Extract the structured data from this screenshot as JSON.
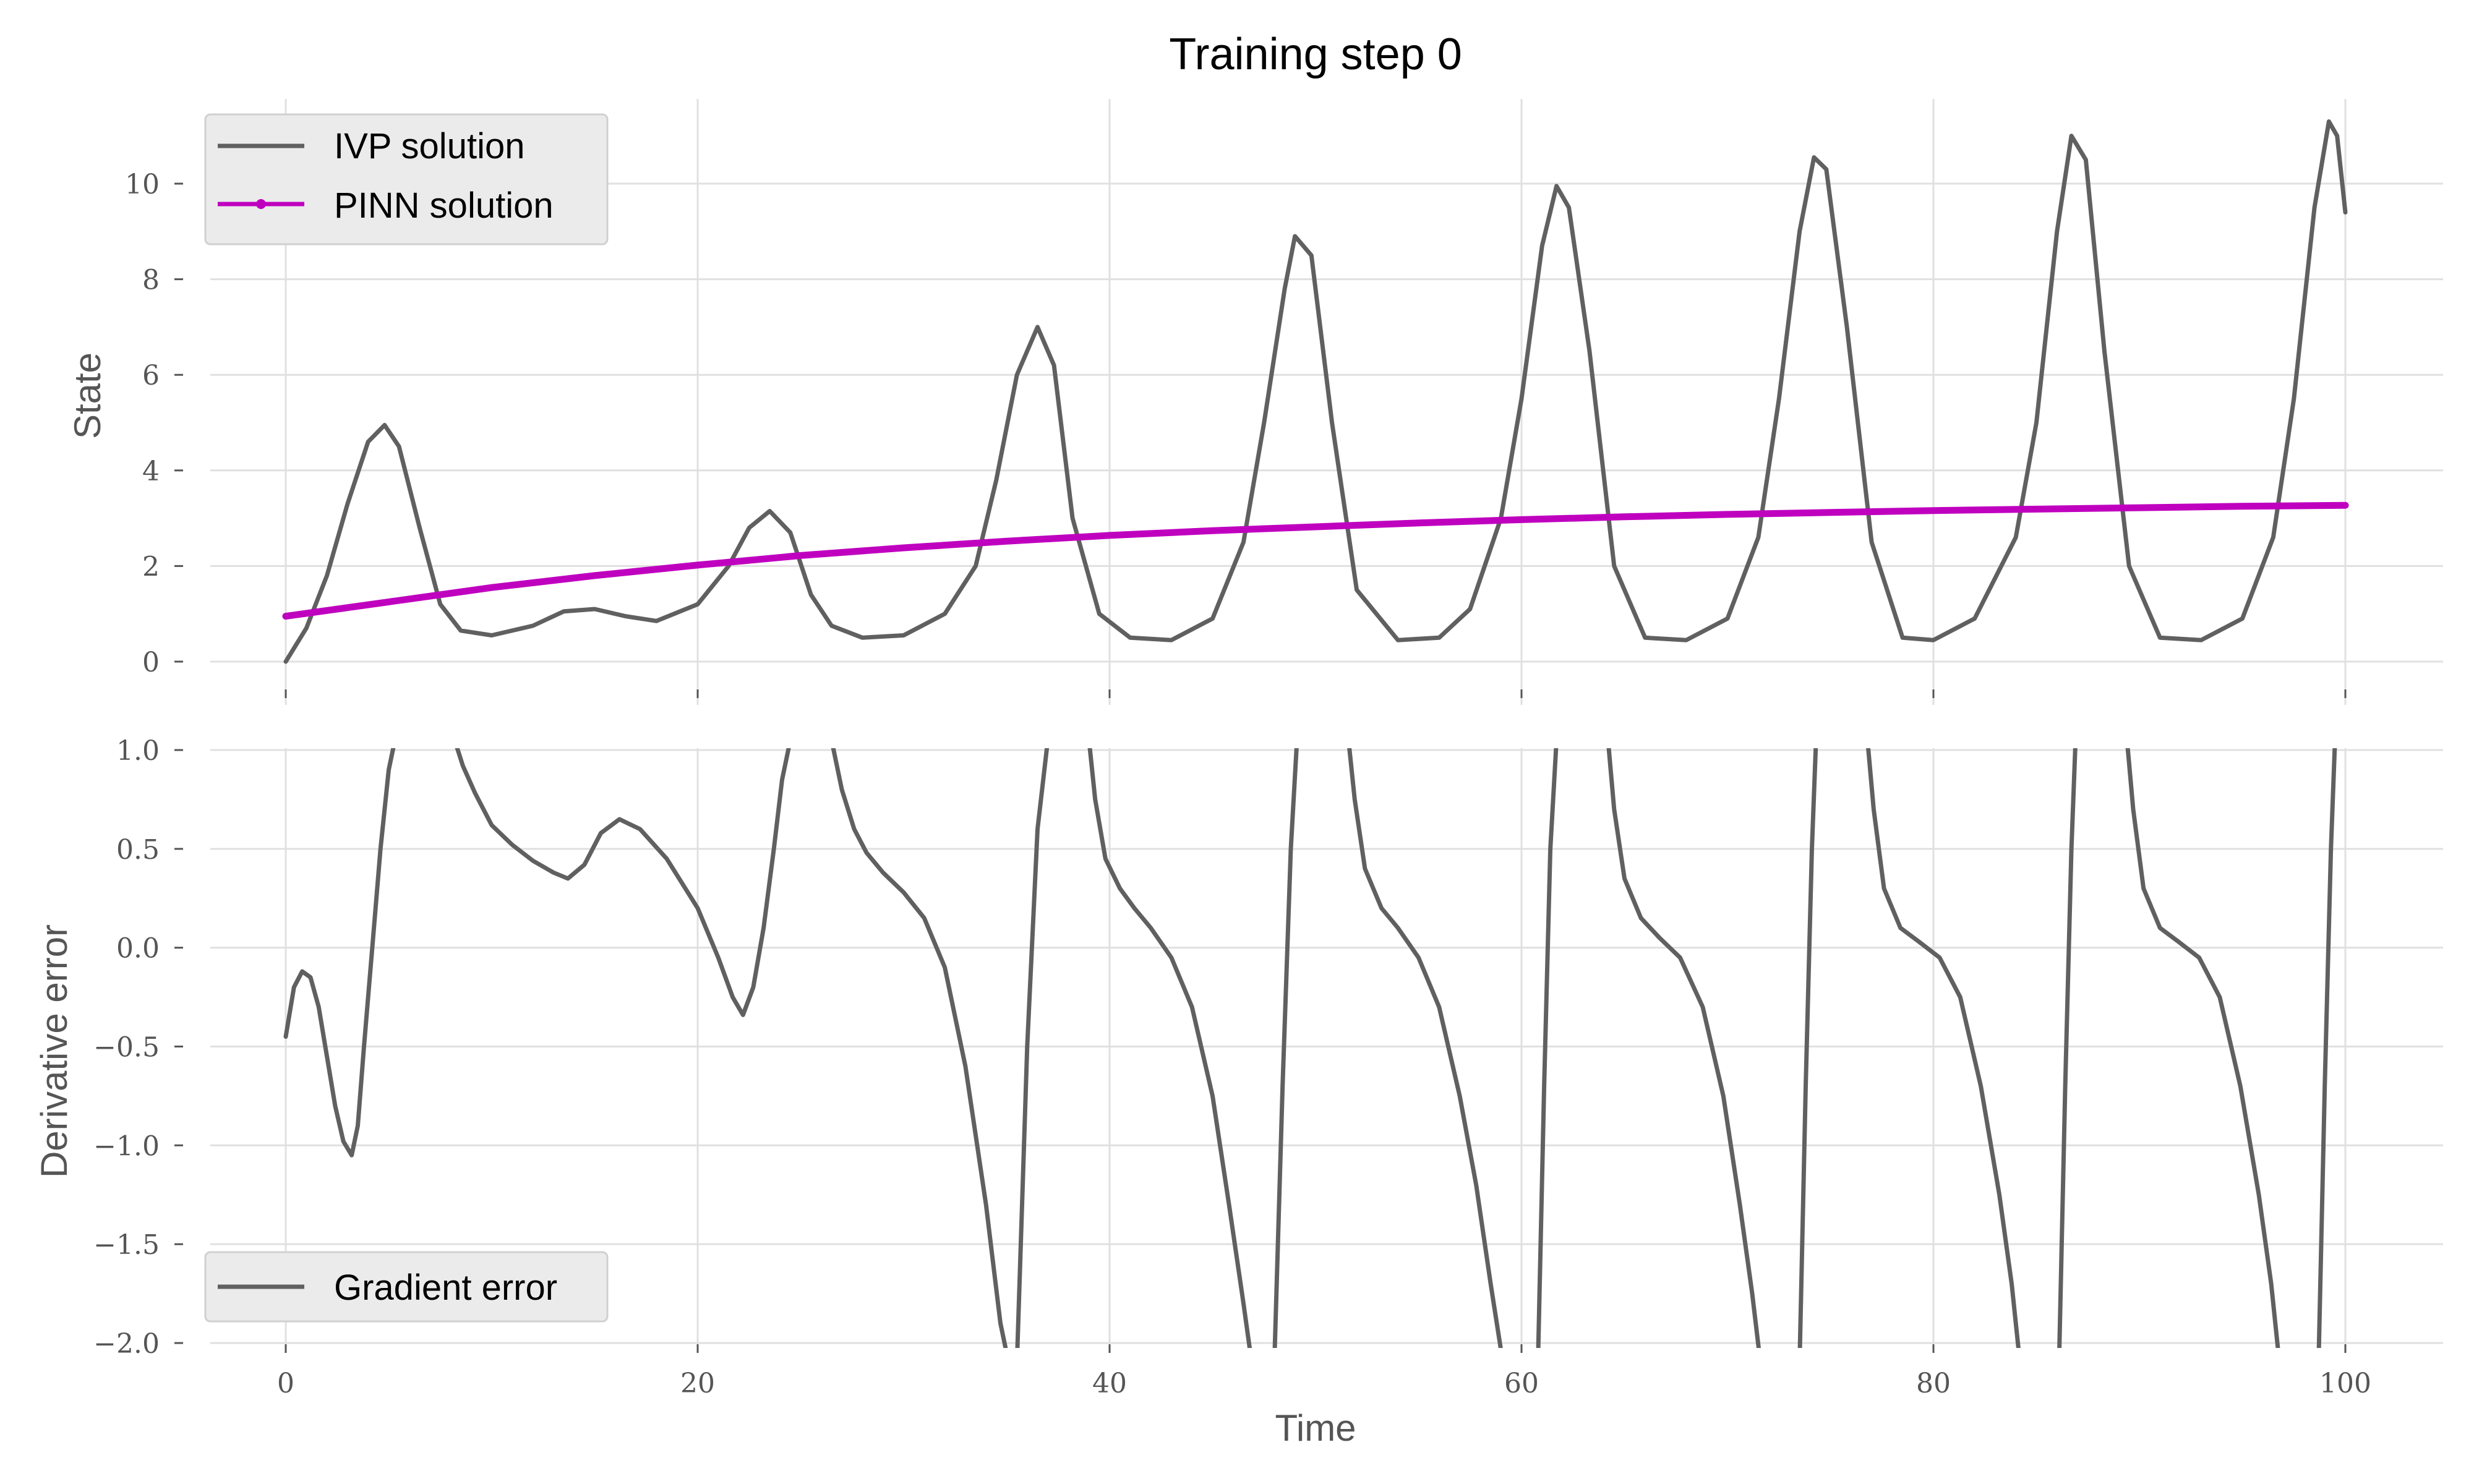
{
  "figure": {
    "title": "Training step 0",
    "xlabel": "Time",
    "colors": {
      "ivp": "#606060",
      "pinn": "#bf00bf",
      "grid": "#e0e0e0",
      "legend_bg": "#ebebeb",
      "text": "#555555"
    }
  },
  "chart_data": [
    {
      "type": "line",
      "ylabel": "State",
      "xlim": [
        -4,
        104
      ],
      "ylim": [
        -0.4,
        11.8
      ],
      "grid": true,
      "legend_placement": "top-left",
      "x_ticks": [
        0,
        20,
        40,
        60,
        80,
        100
      ],
      "y_ticks": [
        0,
        2,
        4,
        6,
        8,
        10
      ],
      "y_tick_labels": [
        "0",
        "2",
        "4",
        "6",
        "8",
        "10"
      ],
      "series": [
        {
          "name": "IVP solution",
          "color": "#606060",
          "x": [
            0,
            1,
            2,
            3,
            4,
            4.8,
            5.5,
            6.5,
            7.5,
            8.5,
            10,
            12,
            13.5,
            15,
            16.5,
            18,
            20,
            21.5,
            22.5,
            23.5,
            24.5,
            25.5,
            26.5,
            28,
            30,
            32,
            33.5,
            34.5,
            35.5,
            36.5,
            37.3,
            38.2,
            39.5,
            41,
            43,
            45,
            46.5,
            47.5,
            48.5,
            49,
            49.8,
            50.8,
            52,
            54,
            56,
            57.5,
            59,
            60,
            61,
            61.7,
            62.3,
            63.3,
            64.5,
            66,
            68,
            70,
            71.5,
            72.5,
            73.5,
            74.2,
            74.8,
            75.8,
            77,
            78.5,
            80,
            82,
            84,
            85,
            86,
            86.7,
            87.4,
            88.3,
            89.5,
            91,
            93,
            95,
            96.5,
            97.5,
            98.5,
            99.2,
            99.6,
            100
          ],
          "y": [
            0.0,
            0.7,
            1.8,
            3.3,
            4.6,
            4.95,
            4.5,
            2.8,
            1.2,
            0.65,
            0.55,
            0.75,
            1.05,
            1.1,
            0.95,
            0.85,
            1.2,
            2.0,
            2.8,
            3.15,
            2.7,
            1.4,
            0.75,
            0.5,
            0.55,
            1.0,
            2.0,
            3.8,
            6.0,
            7.0,
            6.2,
            3.0,
            1.0,
            0.5,
            0.45,
            0.9,
            2.5,
            5.0,
            7.8,
            8.9,
            8.5,
            5.0,
            1.5,
            0.45,
            0.5,
            1.1,
            3.0,
            5.5,
            8.7,
            9.95,
            9.5,
            6.5,
            2.0,
            0.5,
            0.45,
            0.9,
            2.6,
            5.5,
            9.0,
            10.55,
            10.3,
            7.0,
            2.5,
            0.5,
            0.45,
            0.9,
            2.6,
            5.0,
            9.0,
            11.0,
            10.5,
            6.5,
            2.0,
            0.5,
            0.45,
            0.9,
            2.6,
            5.5,
            9.5,
            11.3,
            11.0,
            9.4
          ]
        },
        {
          "name": "PINN solution",
          "color": "#bf00bf",
          "x": [
            0,
            5,
            10,
            15,
            20,
            25,
            30,
            35,
            40,
            45,
            50,
            55,
            60,
            65,
            70,
            75,
            80,
            85,
            90,
            95,
            100
          ],
          "y": [
            0.95,
            1.25,
            1.55,
            1.8,
            2.02,
            2.22,
            2.38,
            2.52,
            2.64,
            2.74,
            2.82,
            2.9,
            2.97,
            3.03,
            3.08,
            3.12,
            3.16,
            3.19,
            3.22,
            3.25,
            3.27
          ]
        }
      ]
    },
    {
      "type": "line",
      "ylabel": "Derivative error",
      "xlim": [
        -4,
        104
      ],
      "ylim": [
        -2.0,
        1.0
      ],
      "grid": true,
      "legend_placement": "bottom-left",
      "x_ticks": [
        0,
        20,
        40,
        60,
        80,
        100
      ],
      "x_tick_labels": [
        "0",
        "20",
        "40",
        "60",
        "80",
        "100"
      ],
      "y_ticks": [
        -2.0,
        -1.5,
        -1.0,
        -0.5,
        0.0,
        0.5,
        1.0
      ],
      "y_tick_labels": [
        "−2.0",
        "−1.5",
        "−1.0",
        "−0.5",
        "0.0",
        "0.5",
        "1.0"
      ],
      "series": [
        {
          "name": "Gradient error",
          "color": "#606060",
          "segments": [
            {
              "x": [
                0,
                0.4,
                0.8,
                1.2,
                1.6,
                2.0,
                2.4,
                2.8,
                3.2,
                3.5,
                3.8,
                4.2,
                4.6,
                5.0,
                5.3
              ],
              "y": [
                -0.45,
                -0.2,
                -0.12,
                -0.15,
                -0.3,
                -0.55,
                -0.8,
                -0.98,
                -1.05,
                -0.9,
                -0.5,
                0.0,
                0.5,
                0.9,
                1.05
              ]
            },
            {
              "x": [
                8.2,
                8.6,
                9.2,
                10,
                11,
                12,
                13,
                13.7,
                14.5,
                15.3,
                16.2,
                17.2,
                18.5,
                20,
                21,
                21.7,
                22.2,
                22.7,
                23.2,
                23.7,
                24.1,
                24.5
              ],
              "y": [
                1.05,
                0.92,
                0.78,
                0.62,
                0.52,
                0.44,
                0.38,
                0.35,
                0.42,
                0.58,
                0.65,
                0.6,
                0.45,
                0.2,
                -0.05,
                -0.25,
                -0.34,
                -0.2,
                0.1,
                0.5,
                0.85,
                1.05
              ]
            },
            {
              "x": [
                26.5,
                27,
                27.6,
                28.2,
                29,
                30,
                31,
                32,
                33,
                34,
                34.7,
                35.1
              ],
              "y": [
                1.05,
                0.8,
                0.6,
                0.48,
                0.38,
                0.28,
                0.15,
                -0.1,
                -0.6,
                -1.3,
                -1.9,
                -2.1
              ]
            },
            {
              "x": [
                35.5,
                36,
                36.5,
                37
              ],
              "y": [
                -2.1,
                -0.5,
                0.6,
                1.05
              ]
            },
            {
              "x": [
                39,
                39.3,
                39.8,
                40.5,
                41.2,
                42,
                43,
                44,
                45,
                45.8,
                46.5,
                46.9
              ],
              "y": [
                1.05,
                0.75,
                0.45,
                0.3,
                0.2,
                0.1,
                -0.05,
                -0.3,
                -0.75,
                -1.3,
                -1.8,
                -2.1
              ]
            },
            {
              "x": [
                48,
                48.4,
                48.8,
                49.1
              ],
              "y": [
                -2.1,
                -0.7,
                0.5,
                1.05
              ]
            },
            {
              "x": [
                51.6,
                51.9,
                52.4,
                53.2,
                54,
                55,
                56,
                57,
                57.8,
                58.5,
                59.1
              ],
              "y": [
                1.05,
                0.75,
                0.4,
                0.2,
                0.1,
                -0.05,
                -0.3,
                -0.75,
                -1.2,
                -1.7,
                -2.1
              ]
            },
            {
              "x": [
                60.8,
                61.1,
                61.4,
                61.7
              ],
              "y": [
                -2.1,
                -0.7,
                0.5,
                1.05
              ]
            },
            {
              "x": [
                64.2,
                64.5,
                65,
                65.8,
                66.7,
                67.7,
                68.8,
                69.8,
                70.6,
                71.2,
                71.6
              ],
              "y": [
                1.05,
                0.7,
                0.35,
                0.15,
                0.05,
                -0.05,
                -0.3,
                -0.75,
                -1.3,
                -1.75,
                -2.1
              ]
            },
            {
              "x": [
                73.5,
                73.8,
                74.1,
                74.3
              ],
              "y": [
                -2.1,
                -0.7,
                0.5,
                1.05
              ]
            },
            {
              "x": [
                76.8,
                77.1,
                77.6,
                78.4,
                79.3,
                80.3,
                81.3,
                82.3,
                83.2,
                83.8,
                84.2
              ],
              "y": [
                1.05,
                0.7,
                0.3,
                0.1,
                0.03,
                -0.05,
                -0.25,
                -0.7,
                -1.25,
                -1.7,
                -2.1
              ]
            },
            {
              "x": [
                86.1,
                86.4,
                86.7,
                86.9
              ],
              "y": [
                -2.1,
                -0.7,
                0.5,
                1.05
              ]
            },
            {
              "x": [
                89.4,
                89.7,
                90.2,
                91,
                91.9,
                92.9,
                93.9,
                94.9,
                95.8,
                96.4,
                96.8
              ],
              "y": [
                1.05,
                0.7,
                0.3,
                0.1,
                0.03,
                -0.05,
                -0.25,
                -0.7,
                -1.25,
                -1.7,
                -2.1
              ]
            },
            {
              "x": [
                98.7,
                99,
                99.3,
                99.5
              ],
              "y": [
                -2.1,
                -0.7,
                0.5,
                1.05
              ]
            }
          ]
        }
      ]
    }
  ]
}
